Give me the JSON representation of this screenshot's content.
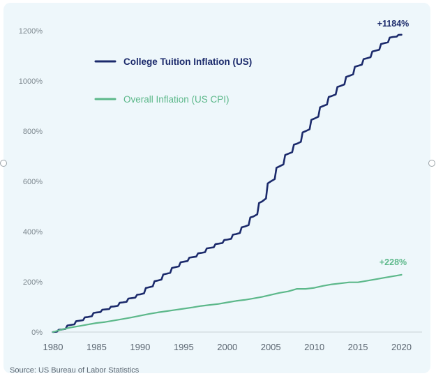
{
  "chart_data": {
    "type": "line",
    "title": "",
    "xlabel": "",
    "ylabel": "",
    "xlim": [
      1980,
      2021
    ],
    "ylim": [
      0,
      1250
    ],
    "x_ticks": [
      "1980",
      "1985",
      "1990",
      "1995",
      "2000",
      "2005",
      "2010",
      "2015",
      "2020"
    ],
    "y_ticks": [
      "0%",
      "200%",
      "400%",
      "600%",
      "800%",
      "1000%",
      "1200%"
    ],
    "legend_position": "top-left",
    "grid": false,
    "series": [
      {
        "name": "College Tuition Inflation (US)",
        "color": "#1b2a6b",
        "end_label": "+1184%",
        "x": [
          1980,
          1981,
          1982,
          1983,
          1984,
          1985,
          1986,
          1987,
          1988,
          1989,
          1990,
          1991,
          1992,
          1993,
          1994,
          1995,
          1996,
          1997,
          1998,
          1999,
          2000,
          2001,
          2002,
          2003,
          2004,
          2005,
          2006,
          2007,
          2008,
          2009,
          2010,
          2011,
          2012,
          2013,
          2014,
          2015,
          2016,
          2017,
          2018,
          2019,
          2020
        ],
        "y": [
          0,
          10,
          28,
          45,
          60,
          78,
          90,
          102,
          118,
          135,
          150,
          178,
          205,
          232,
          258,
          280,
          298,
          315,
          335,
          352,
          368,
          390,
          420,
          460,
          520,
          600,
          660,
          710,
          750,
          800,
          850,
          900,
          940,
          980,
          1020,
          1060,
          1090,
          1120,
          1150,
          1175,
          1184
        ]
      },
      {
        "name": "Overall Inflation (US CPI)",
        "color": "#5cb88a",
        "end_label": "+228%",
        "x": [
          1980,
          1981,
          1982,
          1983,
          1984,
          1985,
          1986,
          1987,
          1988,
          1989,
          1990,
          1991,
          1992,
          1993,
          1994,
          1995,
          1996,
          1997,
          1998,
          1999,
          2000,
          2001,
          2002,
          2003,
          2004,
          2005,
          2006,
          2007,
          2008,
          2009,
          2010,
          2011,
          2012,
          2013,
          2014,
          2015,
          2016,
          2017,
          2018,
          2019,
          2020
        ],
        "y": [
          0,
          10,
          18,
          24,
          30,
          36,
          40,
          46,
          52,
          58,
          65,
          72,
          78,
          83,
          88,
          93,
          98,
          104,
          108,
          112,
          118,
          124,
          128,
          134,
          140,
          148,
          156,
          162,
          172,
          172,
          176,
          184,
          190,
          194,
          198,
          198,
          204,
          210,
          216,
          222,
          228
        ]
      }
    ],
    "source": "Source: US Bureau of Labor Statistics"
  }
}
